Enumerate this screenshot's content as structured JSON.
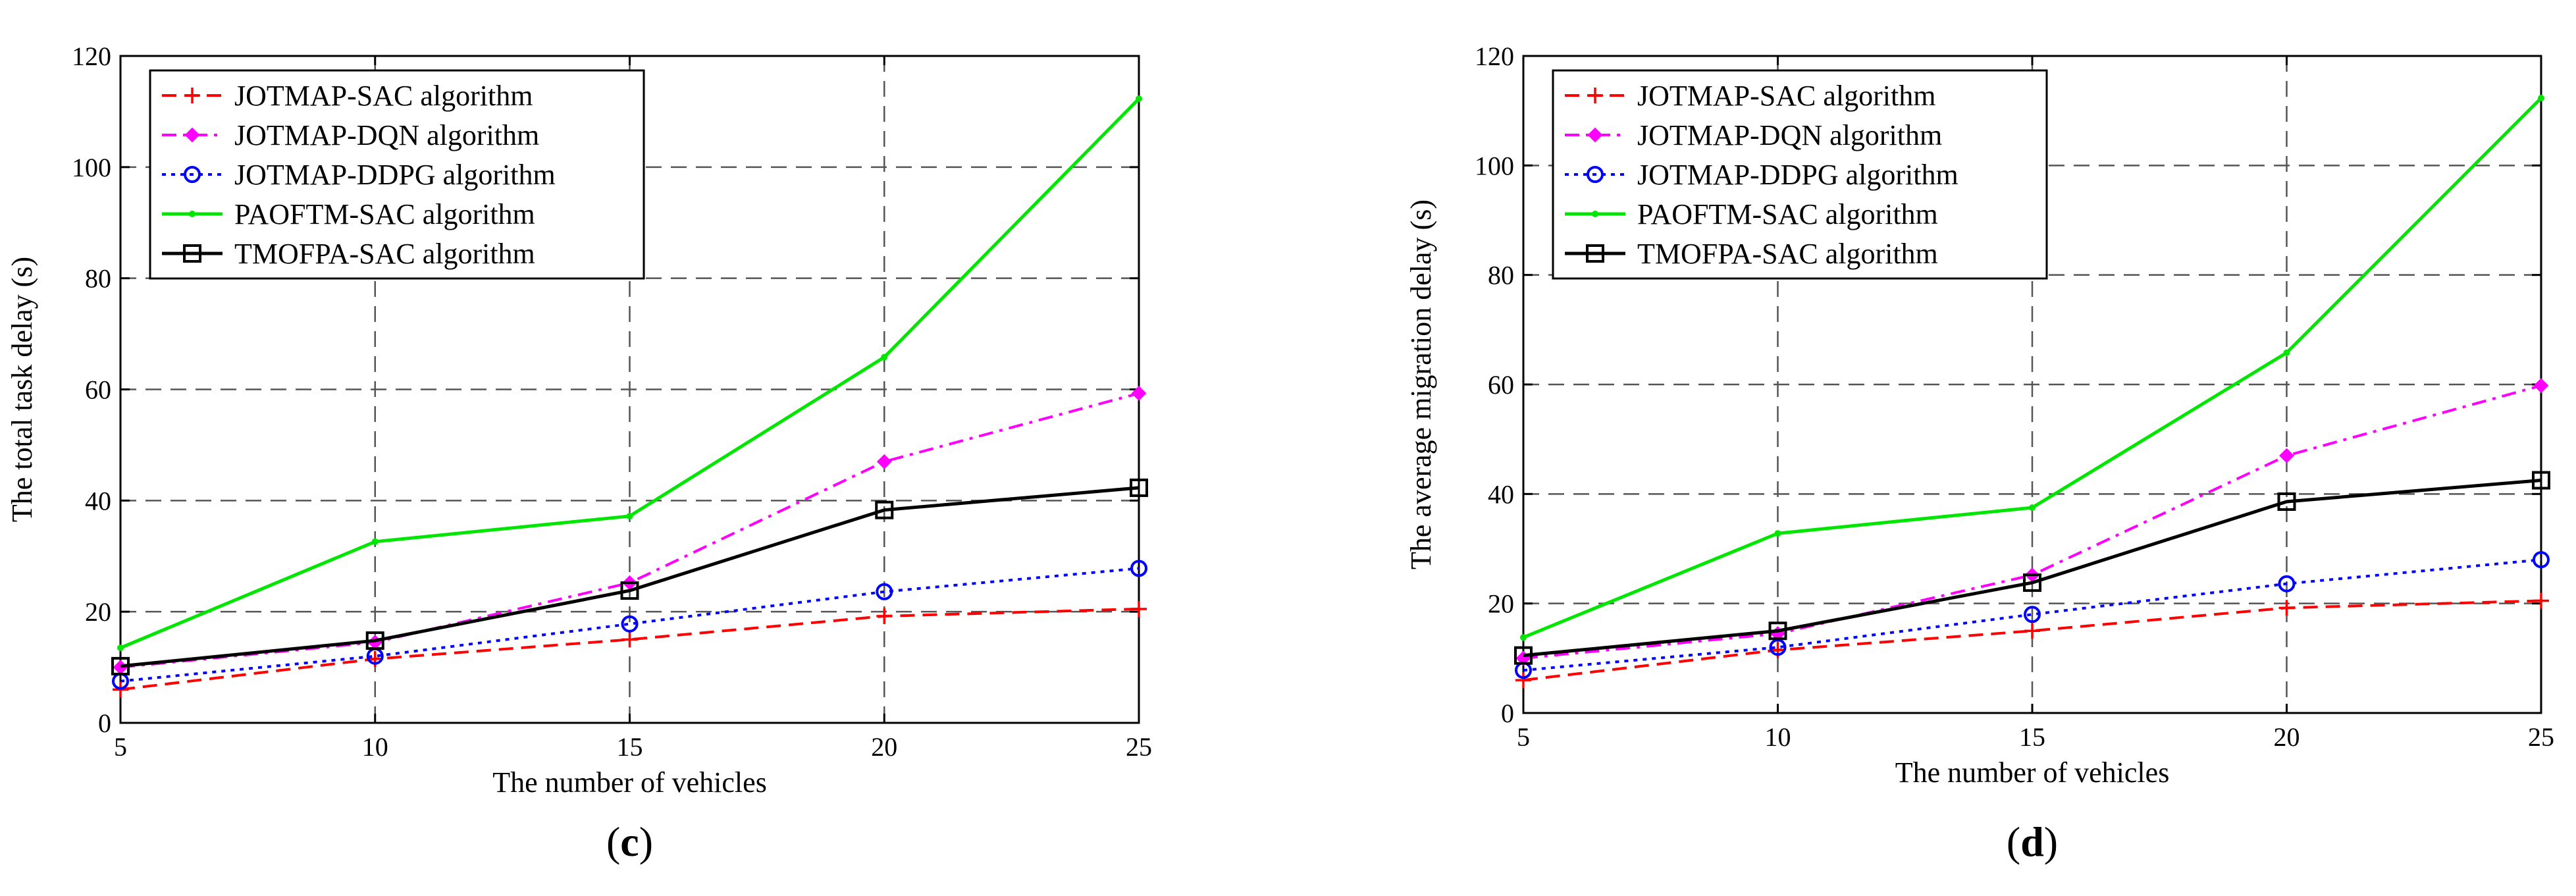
{
  "chart_data": [
    {
      "type": "line",
      "panel_label": "c",
      "xlabel": "The number of vehicles",
      "ylabel": "The total task delay (s)",
      "x": [
        5,
        10,
        15,
        20,
        25
      ],
      "xlim": [
        5,
        25
      ],
      "ylim": [
        0,
        120
      ],
      "xticks": [
        5,
        10,
        15,
        20,
        25
      ],
      "yticks": [
        0,
        20,
        40,
        60,
        80,
        100,
        120
      ],
      "grid": true,
      "legend_position": "top-left",
      "series": [
        {
          "name": "JOTMAP-SAC algorithm",
          "color": "#ff0000",
          "dash": "dashed",
          "marker": "plus",
          "values": [
            6,
            11.5,
            15,
            19.2,
            20.5
          ]
        },
        {
          "name": "JOTMAP-DQN algorithm",
          "color": "#ff00ff",
          "dash": "dash-dot",
          "marker": "diamond",
          "values": [
            10,
            14.5,
            25.2,
            47,
            59.3
          ]
        },
        {
          "name": "JOTMAP-DDPG algorithm",
          "color": "#0000ff",
          "dash": "dotted",
          "marker": "circle",
          "values": [
            7.5,
            12,
            17.8,
            23.6,
            27.8
          ]
        },
        {
          "name": "PAOFTM-SAC algorithm",
          "color": "#00e600",
          "dash": "solid",
          "marker": "point",
          "values": [
            13.5,
            32.6,
            37.2,
            65.8,
            112.3
          ]
        },
        {
          "name": "TMOFPA-SAC algorithm",
          "color": "#000000",
          "dash": "solid",
          "marker": "square",
          "values": [
            10.2,
            14.8,
            23.8,
            38.3,
            42.3
          ]
        }
      ]
    },
    {
      "type": "line",
      "panel_label": "d",
      "xlabel": "The number of vehicles",
      "ylabel": "The average migration delay (s)",
      "x": [
        5,
        10,
        15,
        20,
        25
      ],
      "xlim": [
        5,
        25
      ],
      "ylim": [
        0,
        120
      ],
      "xticks": [
        5,
        10,
        15,
        20,
        25
      ],
      "yticks": [
        0,
        20,
        40,
        60,
        80,
        100,
        120
      ],
      "grid": true,
      "legend_position": "top-left",
      "series": [
        {
          "name": "JOTMAP-SAC algorithm",
          "color": "#ff0000",
          "dash": "dashed",
          "marker": "plus",
          "values": [
            6,
            11.5,
            15,
            19.2,
            20.5
          ]
        },
        {
          "name": "JOTMAP-DQN algorithm",
          "color": "#ff00ff",
          "dash": "dash-dot",
          "marker": "diamond",
          "values": [
            10,
            14.5,
            25.2,
            47,
            59.8
          ]
        },
        {
          "name": "JOTMAP-DDPG algorithm",
          "color": "#0000ff",
          "dash": "dotted",
          "marker": "circle",
          "values": [
            7.8,
            12,
            18,
            23.6,
            28
          ]
        },
        {
          "name": "PAOFTM-SAC algorithm",
          "color": "#00e600",
          "dash": "solid",
          "marker": "point",
          "values": [
            13.8,
            32.8,
            37.5,
            65.8,
            112.3
          ]
        },
        {
          "name": "TMOFPA-SAC algorithm",
          "color": "#000000",
          "dash": "solid",
          "marker": "square",
          "values": [
            10.5,
            15,
            23.8,
            38.6,
            42.5
          ]
        }
      ]
    }
  ]
}
